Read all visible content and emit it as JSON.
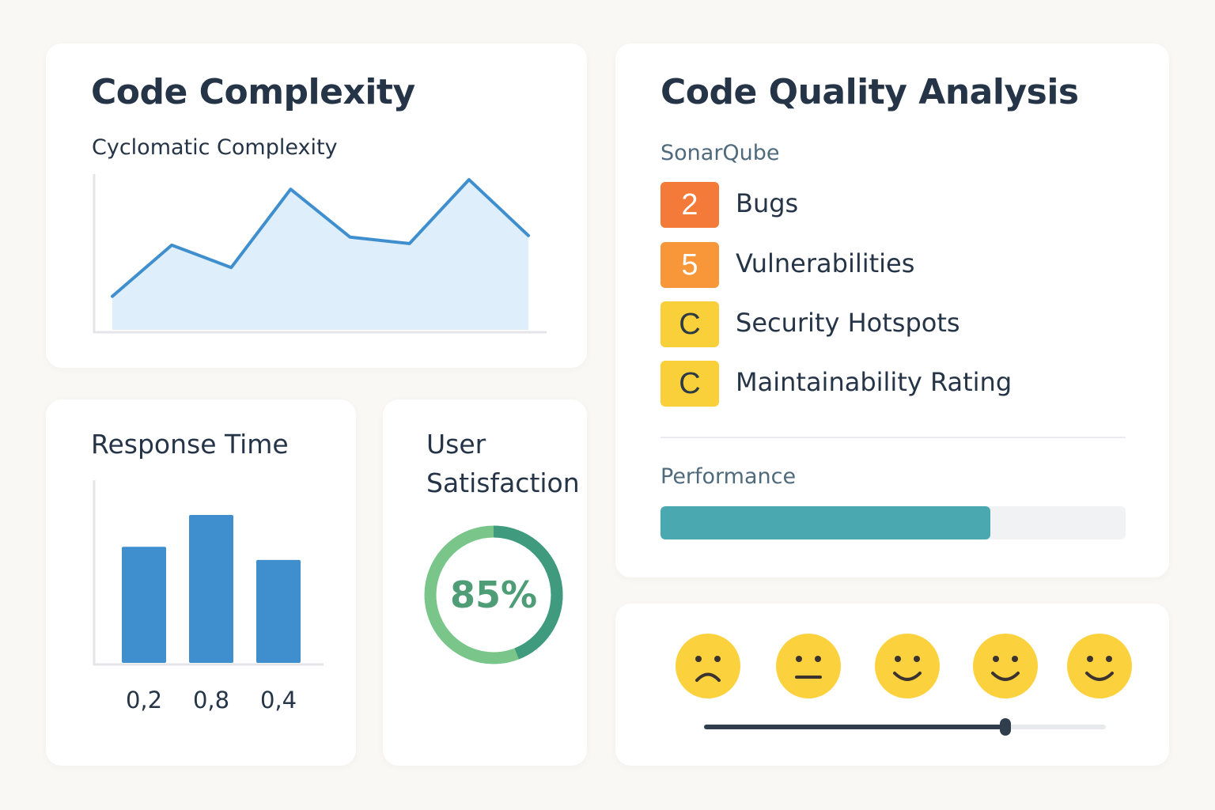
{
  "complexity_card": {
    "title": "Code Complexity",
    "chart_title": "Cyclomatic Complexity"
  },
  "quality_card": {
    "title": "Code Quality Analysis",
    "source_label": "SonarQube",
    "items": [
      {
        "badge": "2",
        "label": "Bugs",
        "color": "#f37a38"
      },
      {
        "badge": "5",
        "label": "Vulnerabilities",
        "color": "#f7973a"
      },
      {
        "badge": "C",
        "label": "Security Hotspots",
        "color": "#f9cf3a"
      },
      {
        "badge": "C",
        "label": "Maintainability Rating",
        "color": "#f9cf3a"
      }
    ],
    "performance_label": "Performance",
    "performance_level": 0.71,
    "performance_color": "#4aa8b0"
  },
  "response_card": {
    "title": "Response Time"
  },
  "satisfaction_card": {
    "title_line1": "User",
    "title_line2": "Satisfaction",
    "value_text": "85%",
    "value": 85,
    "ring_colors": [
      "#79c58a",
      "#3f9a7e"
    ]
  },
  "feedback_card": {
    "faces": [
      "sad-face-icon",
      "neutral-face-icon",
      "smile-face-icon",
      "smile-face-icon",
      "smile-face-icon"
    ],
    "face_color": "#fbd23d",
    "slider_value": 0.75
  },
  "chart_data": [
    {
      "type": "area",
      "title": "Cyclomatic Complexity",
      "xlabel": "",
      "ylabel": "",
      "x": [
        1,
        2,
        3,
        4,
        5,
        6,
        7,
        8
      ],
      "values": [
        2.1,
        5.3,
        3.9,
        8.8,
        5.8,
        5.4,
        9.4,
        5.9
      ],
      "ylim": [
        0,
        10
      ],
      "line_color": "#3f8fcf",
      "fill_color": "#deeefa",
      "grid": false
    },
    {
      "type": "bar",
      "title": "Response Time",
      "categories": [
        "0,2",
        "0,8",
        "0,4"
      ],
      "values": [
        0.62,
        0.79,
        0.55
      ],
      "ylim": [
        0,
        0.9
      ],
      "bar_color": "#3f8fcf",
      "grid": false
    }
  ]
}
